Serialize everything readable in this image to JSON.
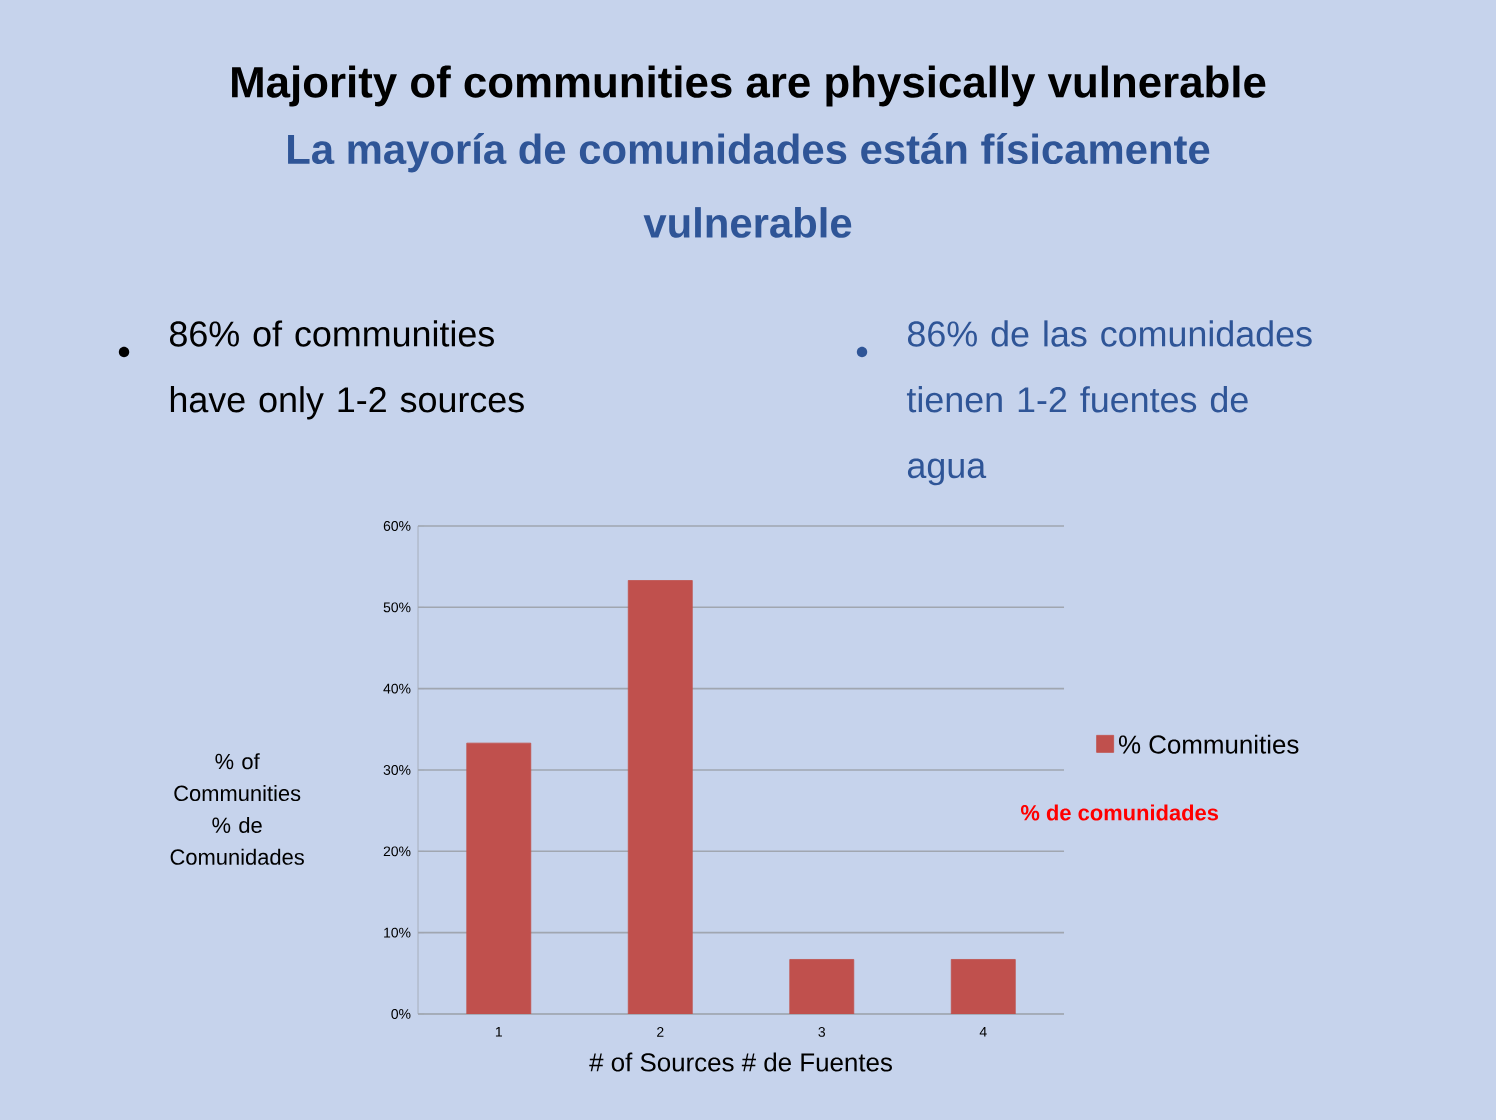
{
  "chart_data": {
    "type": "bar",
    "title": "Majority of communities are physically vulnerable",
    "subtitle": "La mayoría de comunidades están físicamente vulnerable",
    "xlabel": "# of Sources  # de Fuentes",
    "ylabel": "% of Communities % de Comunidades",
    "categories": [
      "1",
      "2",
      "3",
      "4"
    ],
    "series": [
      {
        "name": "% Communities",
        "color": "#c0504d",
        "values": [
          33.3,
          53.3,
          6.7,
          6.7
        ]
      }
    ],
    "ylim": [
      0,
      60
    ],
    "yticks": [
      {
        "value": 0,
        "label": "0%"
      },
      {
        "value": 10,
        "label": "10%"
      },
      {
        "value": 20,
        "label": "20%"
      },
      {
        "value": 30,
        "label": "30%"
      },
      {
        "value": 40,
        "label": "40%"
      },
      {
        "value": 50,
        "label": "50%"
      },
      {
        "value": 60,
        "label": "60%"
      }
    ],
    "grid": "y",
    "legend": "right",
    "annotations": [
      "86% of communities have  only 1-2 sources",
      "86% de las comunidades tienen 1-2 fuentes de agua",
      "% de comunidades"
    ]
  }
}
